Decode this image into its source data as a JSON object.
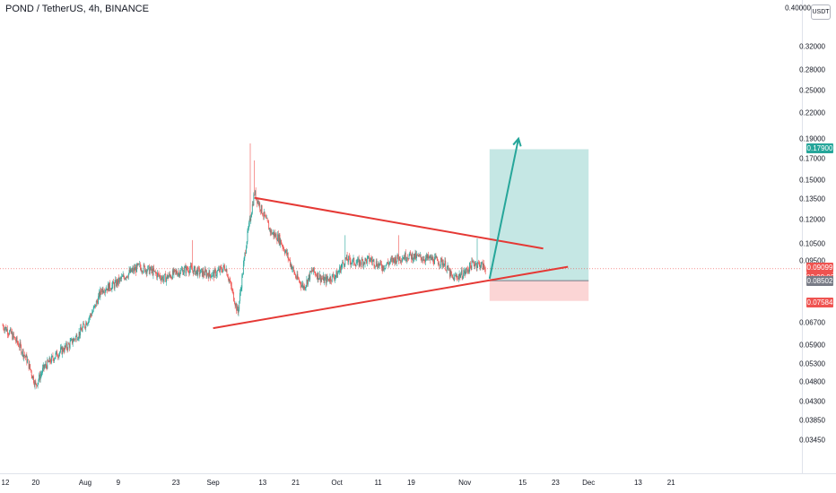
{
  "header": {
    "title": "POND / TetherUS, 4h, BINANCE",
    "unit": "USDT"
  },
  "colors": {
    "bull": "#26a69a",
    "bear": "#ef5350",
    "trendline": "#e53935",
    "target_zone": "#b2dfdb",
    "stop_zone": "#fbd5d5",
    "target_arrow": "#26a69a",
    "last_price": "#ef5350",
    "entry": "#787b86"
  },
  "chart_data": {
    "type": "candlestick",
    "symbol": "POND / TetherUS",
    "interval": "4h",
    "exchange": "BINANCE",
    "y_scale": "log",
    "ylim": [
      0.031,
      0.4
    ],
    "y_ticks": [
      {
        "value": 0.4,
        "label": "0.40000"
      },
      {
        "value": 0.32,
        "label": "0.32000"
      },
      {
        "value": 0.28,
        "label": "0.28000"
      },
      {
        "value": 0.25,
        "label": "0.25000"
      },
      {
        "value": 0.22,
        "label": "0.22000"
      },
      {
        "value": 0.19,
        "label": "0.19000"
      },
      {
        "value": 0.17,
        "label": "0.17000"
      },
      {
        "value": 0.15,
        "label": "0.15000"
      },
      {
        "value": 0.135,
        "label": "0.13500"
      },
      {
        "value": 0.12,
        "label": "0.12000"
      },
      {
        "value": 0.105,
        "label": "0.10500"
      },
      {
        "value": 0.095,
        "label": "0.09500"
      },
      {
        "value": 0.067,
        "label": "0.06700"
      },
      {
        "value": 0.059,
        "label": "0.05900"
      },
      {
        "value": 0.053,
        "label": "0.05300"
      },
      {
        "value": 0.048,
        "label": "0.04800"
      },
      {
        "value": 0.043,
        "label": "0.04300"
      },
      {
        "value": 0.0385,
        "label": "0.03850"
      },
      {
        "value": 0.0345,
        "label": "0.03450"
      }
    ],
    "x_ticks": [
      {
        "date": "2021-07-12",
        "label": "12"
      },
      {
        "date": "2021-07-20",
        "label": "20"
      },
      {
        "date": "2021-08-01",
        "label": "Aug"
      },
      {
        "date": "2021-08-09",
        "label": "9"
      },
      {
        "date": "2021-08-23",
        "label": "23"
      },
      {
        "date": "2021-09-01",
        "label": "Sep"
      },
      {
        "date": "2021-09-13",
        "label": "13"
      },
      {
        "date": "2021-09-21",
        "label": "21"
      },
      {
        "date": "2021-10-01",
        "label": "Oct"
      },
      {
        "date": "2021-10-11",
        "label": "11"
      },
      {
        "date": "2021-10-19",
        "label": "19"
      },
      {
        "date": "2021-11-01",
        "label": "Nov"
      },
      {
        "date": "2021-11-15",
        "label": "15"
      },
      {
        "date": "2021-11-23",
        "label": "23"
      },
      {
        "date": "2021-12-01",
        "label": "Dec"
      },
      {
        "date": "2021-12-13",
        "label": "13"
      },
      {
        "date": "2021-12-21",
        "label": "21"
      }
    ],
    "price_path": [
      [
        "2021-07-12",
        0.066
      ],
      [
        "2021-07-14",
        0.063
      ],
      [
        "2021-07-16",
        0.059
      ],
      [
        "2021-07-18",
        0.054
      ],
      [
        "2021-07-20",
        0.047
      ],
      [
        "2021-07-22",
        0.052
      ],
      [
        "2021-07-25",
        0.056
      ],
      [
        "2021-07-28",
        0.059
      ],
      [
        "2021-07-31",
        0.064
      ],
      [
        "2021-08-03",
        0.072
      ],
      [
        "2021-08-05",
        0.081
      ],
      [
        "2021-08-08",
        0.083
      ],
      [
        "2021-08-11",
        0.088
      ],
      [
        "2021-08-14",
        0.092
      ],
      [
        "2021-08-17",
        0.09
      ],
      [
        "2021-08-20",
        0.086
      ],
      [
        "2021-08-23",
        0.089
      ],
      [
        "2021-08-26",
        0.091
      ],
      [
        "2021-08-29",
        0.089
      ],
      [
        "2021-09-01",
        0.088
      ],
      [
        "2021-09-04",
        0.092
      ],
      [
        "2021-09-07",
        0.071
      ],
      [
        "2021-09-09",
        0.105
      ],
      [
        "2021-09-11",
        0.14
      ],
      [
        "2021-09-13",
        0.125
      ],
      [
        "2021-09-15",
        0.112
      ],
      [
        "2021-09-17",
        0.108
      ],
      [
        "2021-09-19",
        0.098
      ],
      [
        "2021-09-21",
        0.087
      ],
      [
        "2021-09-23",
        0.082
      ],
      [
        "2021-09-25",
        0.09
      ],
      [
        "2021-09-28",
        0.085
      ],
      [
        "2021-10-01",
        0.088
      ],
      [
        "2021-10-03",
        0.096
      ],
      [
        "2021-10-06",
        0.094
      ],
      [
        "2021-10-09",
        0.096
      ],
      [
        "2021-10-12",
        0.092
      ],
      [
        "2021-10-15",
        0.096
      ],
      [
        "2021-10-18",
        0.098
      ],
      [
        "2021-10-21",
        0.097
      ],
      [
        "2021-10-24",
        0.096
      ],
      [
        "2021-10-27",
        0.094
      ],
      [
        "2021-10-29",
        0.086
      ],
      [
        "2021-11-01",
        0.089
      ],
      [
        "2021-11-03",
        0.094
      ],
      [
        "2021-11-05",
        0.093
      ],
      [
        "2021-11-06",
        0.09099
      ]
    ],
    "spikes": [
      [
        "2021-08-27",
        0.107
      ],
      [
        "2021-09-10",
        0.185
      ],
      [
        "2021-09-11",
        0.168
      ],
      [
        "2021-10-03",
        0.11
      ],
      [
        "2021-10-16",
        0.11
      ],
      [
        "2021-11-04",
        0.108
      ]
    ],
    "annotations": {
      "resistance_line": [
        [
          "2021-09-11",
          0.136
        ],
        [
          "2021-11-20",
          0.102
        ]
      ],
      "support_line": [
        [
          "2021-09-01",
          0.065
        ],
        [
          "2021-11-26",
          0.092
        ]
      ],
      "position": {
        "start": "2021-11-07",
        "end": "2021-12-01",
        "entry": 0.08502,
        "target": 0.179,
        "stop": 0.07584
      },
      "arrow": [
        [
          "2021-11-07",
          0.086
        ],
        [
          "2021-11-14",
          0.19
        ]
      ],
      "last_price": 0.09099,
      "countdown": "03:00:02"
    },
    "price_labels": {
      "target": "0.17900",
      "last": "0.09099",
      "countdown": "03:00:02",
      "entry": "0.08502",
      "stop": "0.07584"
    }
  }
}
